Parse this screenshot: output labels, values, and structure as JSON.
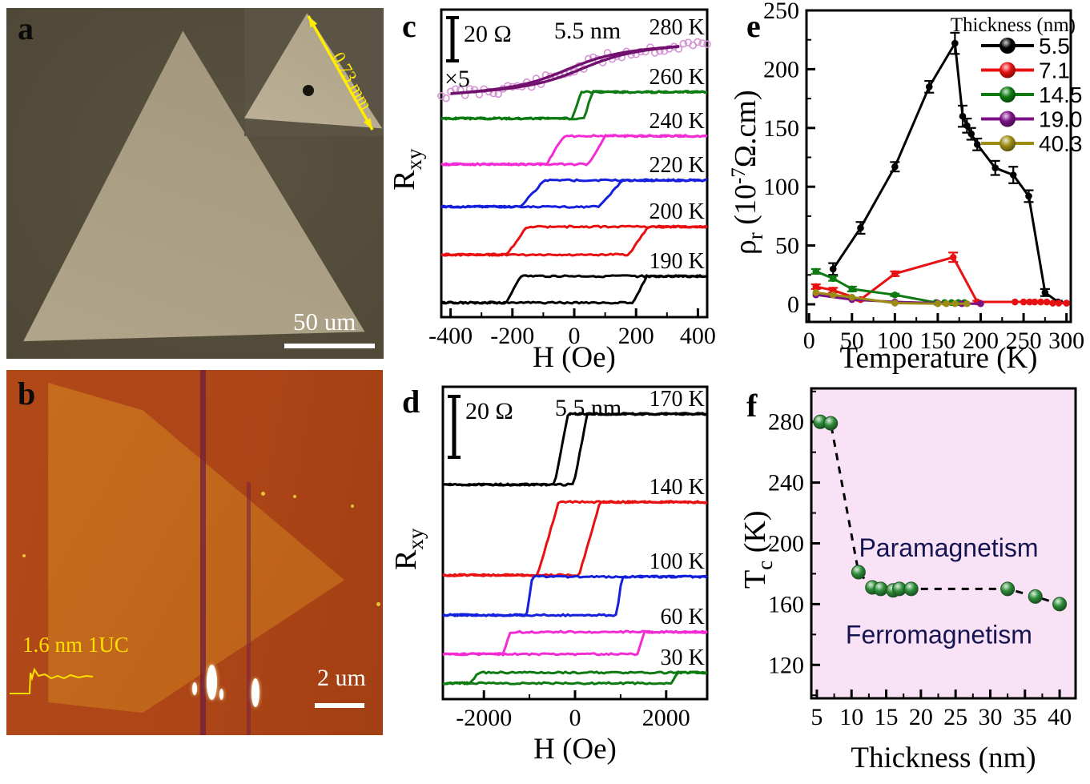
{
  "figure": {
    "background": "#ffffff"
  },
  "panel_a": {
    "label": "a",
    "scalebar_label": "50 um",
    "inset_arrow_label": "0.73 mm"
  },
  "panel_b": {
    "label": "b",
    "step_annotation": "1.6 nm 1UC",
    "scalebar_label": "2 um"
  },
  "chart_data": [
    {
      "id": "c",
      "panel_label": "c",
      "type": "line",
      "subtype": "hall-hysteresis-loops",
      "sample": "5.5 nm",
      "scalebar": "20 Ω",
      "multiplier_note": "×5",
      "xlabel": "H (Oe)",
      "ylabel_main": "R",
      "ylabel_sub": "xy",
      "xlim": [
        -430,
        430
      ],
      "xticks": [
        -400,
        -200,
        0,
        200,
        400
      ],
      "xminor": 100,
      "curves": [
        {
          "label": "280 K",
          "color": "#72106e",
          "scatter_color": "#d592d5",
          "kind": "sshape",
          "mid": 0.194,
          "amp": 0.082,
          "shift": 25
        },
        {
          "label": "260 K",
          "color": "#0d7a12",
          "kind": "loop",
          "low": 0.354,
          "high": 0.268,
          "hcl": 8,
          "hcr": 45,
          "tw": 14
        },
        {
          "label": "240 K",
          "color": "#f32bd5",
          "kind": "loop",
          "low": 0.503,
          "high": 0.411,
          "hcl": -62,
          "hcr": 73,
          "tw": 28
        },
        {
          "label": "220 K",
          "color": "#1520dd",
          "kind": "loop",
          "low": 0.641,
          "high": 0.555,
          "hcl": -135,
          "hcr": 118,
          "tw": 38
        },
        {
          "label": "200 K",
          "color": "#e81010",
          "kind": "loop",
          "low": 0.797,
          "high": 0.706,
          "hcl": -185,
          "hcr": 208,
          "tw": 32
        },
        {
          "label": "190 K",
          "color": "#000000",
          "kind": "loop",
          "low": 0.953,
          "high": 0.867,
          "hcl": -197,
          "hcr": 213,
          "tw": 22
        }
      ]
    },
    {
      "id": "d",
      "panel_label": "d",
      "type": "line",
      "subtype": "hall-hysteresis-loops",
      "sample": "5.5 nm",
      "scalebar": "20 Ω",
      "xlabel": "H (Oe)",
      "ylabel_main": "R",
      "ylabel_sub": "xy",
      "xlim": [
        -2900,
        2900
      ],
      "xticks": [
        -2000,
        0,
        2000
      ],
      "xminor": 1000,
      "curves": [
        {
          "label": "170 K",
          "color": "#000000",
          "kind": "loop",
          "low": 0.313,
          "high": 0.087,
          "hcl": -300,
          "hcr": 120,
          "tw": 150
        },
        {
          "label": "140 K",
          "color": "#e81010",
          "kind": "loop",
          "low": 0.603,
          "high": 0.369,
          "hcl": -590,
          "hcr": 320,
          "tw": 230
        },
        {
          "label": "100 K",
          "color": "#1520dd",
          "kind": "loop",
          "low": 0.731,
          "high": 0.608,
          "hcl": -1000,
          "hcr": 970,
          "tw": 60
        },
        {
          "label": "60 K",
          "color": "#f32bd5",
          "kind": "loop",
          "low": 0.856,
          "high": 0.785,
          "hcl": -1500,
          "hcr": 1450,
          "tw": 80
        },
        {
          "label": "30 K",
          "color": "#0d7a12",
          "kind": "loop",
          "low": 0.949,
          "high": 0.915,
          "hcl": -2210,
          "hcr": 2180,
          "tw": 80
        }
      ]
    },
    {
      "id": "e",
      "panel_label": "e",
      "type": "line",
      "xlabel": "Temperature (K)",
      "ylabel_main": "ρ",
      "ylabel_sub": "r",
      "ylabel_mid": " (10",
      "ylabel_sup": "-7",
      "ylabel_end": "Ω.cm)",
      "xlim": [
        -3,
        305
      ],
      "ylim": [
        -15,
        250
      ],
      "xticks": [
        0,
        50,
        100,
        150,
        200,
        250,
        300
      ],
      "yticks": [
        0,
        50,
        100,
        150,
        200,
        250
      ],
      "xminor": 25,
      "yminor": 25,
      "legend_title": "Thickness (nm)",
      "legend_position": "top-right",
      "grid": false,
      "series": [
        {
          "name": "5.5",
          "color": "#000000",
          "x": [
            28,
            60,
            100,
            140,
            170,
            179,
            184,
            189,
            196,
            217,
            238,
            256,
            275,
            290,
            300
          ],
          "y": [
            30,
            65,
            117,
            185,
            222,
            160,
            152,
            145,
            136,
            116,
            110,
            92,
            10,
            2,
            1
          ],
          "err": [
            5,
            5,
            4,
            5,
            9,
            9,
            6,
            5,
            5,
            6,
            7,
            5,
            3,
            1,
            0
          ]
        },
        {
          "name": "7.1",
          "color": "#e81010",
          "x": [
            8,
            28,
            60,
            100,
            168,
            196,
            240,
            250,
            257,
            263,
            270,
            277,
            284,
            291,
            300
          ],
          "y": [
            15,
            12,
            4,
            26,
            40,
            2,
            2,
            2,
            2,
            2,
            2,
            2,
            1,
            1,
            1
          ],
          "err": [
            2,
            2,
            1,
            2,
            4,
            1,
            0,
            0,
            0,
            0,
            0,
            0,
            0,
            0,
            0
          ]
        },
        {
          "name": "14.5",
          "color": "#0d7a12",
          "x": [
            8,
            28,
            50,
            100,
            148,
            158,
            166,
            174,
            181
          ],
          "y": [
            28,
            22,
            13,
            8,
            1.5,
            1.5,
            1.5,
            1.5,
            1.5
          ],
          "err": [
            2,
            2,
            2,
            1,
            0,
            0,
            0,
            0,
            0
          ]
        },
        {
          "name": "19.0",
          "color": "#7c1186",
          "x": [
            8,
            50,
            100,
            150,
            178,
            200
          ],
          "y": [
            8,
            4,
            2,
            1,
            0.5,
            0.5
          ]
        },
        {
          "name": "40.3",
          "color": "#9c8c14",
          "x": [
            8,
            28,
            50,
            100,
            150,
            160,
            170,
            184
          ],
          "y": [
            10,
            8,
            6,
            1,
            0.5,
            0.5,
            0.5,
            0.5
          ]
        }
      ]
    },
    {
      "id": "f",
      "panel_label": "f",
      "type": "scatter",
      "xlabel": "Thickness (nm)",
      "ylabel_main": "T",
      "ylabel_sub": "c",
      "ylabel_end": " (K)",
      "xlim": [
        4.2,
        42.3
      ],
      "ylim": [
        98,
        302
      ],
      "xticks": [
        5,
        10,
        15,
        20,
        25,
        30,
        35,
        40
      ],
      "yticks": [
        120,
        160,
        200,
        240,
        280
      ],
      "xminor": 2.5,
      "yminor": 20,
      "plot_bg": "#f9e2f6",
      "point_color": "#2f8f3a",
      "line_style": "dashed",
      "points": [
        [
          5.5,
          280
        ],
        [
          7.0,
          279
        ],
        [
          11,
          181
        ],
        [
          13,
          171
        ],
        [
          14.2,
          170
        ],
        [
          16,
          169
        ],
        [
          16.9,
          170
        ],
        [
          18.6,
          170
        ],
        [
          32.5,
          170
        ],
        [
          36.5,
          165
        ],
        [
          40,
          160
        ]
      ],
      "annotations": [
        {
          "text": "Paramagnetism",
          "x": 24,
          "y": 197
        },
        {
          "text": "Ferromagnetism",
          "x": 22.6,
          "y": 140
        }
      ]
    }
  ]
}
